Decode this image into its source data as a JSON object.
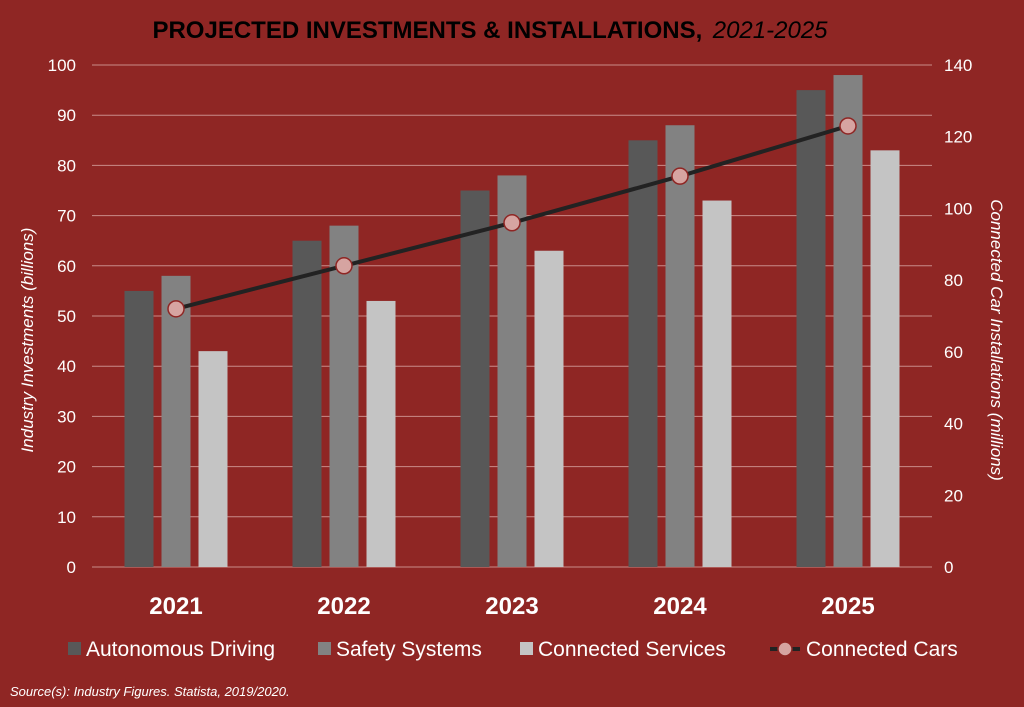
{
  "chart_data": {
    "type": "bar",
    "title": "PROJECTED INVESTMENTS & INSTALLATIONS,",
    "subtitle": "2021-2025",
    "categories": [
      "2021",
      "2022",
      "2023",
      "2024",
      "2025"
    ],
    "series": [
      {
        "name": "Autonomous Driving",
        "type": "bar",
        "axis": "left",
        "values": [
          55,
          65,
          75,
          85,
          95
        ],
        "color": "#585858"
      },
      {
        "name": "Safety Systems",
        "type": "bar",
        "axis": "left",
        "values": [
          58,
          68,
          78,
          88,
          98
        ],
        "color": "#828282"
      },
      {
        "name": "Connected Services",
        "type": "bar",
        "axis": "left",
        "values": [
          43,
          53,
          63,
          73,
          83
        ],
        "color": "#c4c4c4"
      },
      {
        "name": "Connected Cars",
        "type": "line",
        "axis": "right",
        "values": [
          72,
          84,
          96,
          109,
          123
        ],
        "color": "#222222",
        "marker_color": "#d6a4a1"
      }
    ],
    "ylabel": "Industry Investments (billions)",
    "y2label": "Connected Car Installations (millions)",
    "ylim": [
      0,
      100
    ],
    "y2lim": [
      0,
      140
    ],
    "yticks": [
      0,
      10,
      20,
      30,
      40,
      50,
      60,
      70,
      80,
      90,
      100
    ],
    "y2ticks": [
      0,
      20,
      40,
      60,
      80,
      100,
      120,
      140
    ],
    "grid": true,
    "legend_position": "bottom",
    "source": "Source(s): Industry Figures. Statista, 2019/2020."
  }
}
